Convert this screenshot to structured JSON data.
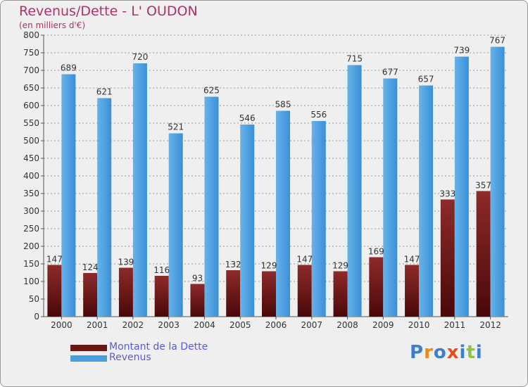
{
  "title": "Revenus/Dette - L' OUDON",
  "subtitle": "(en milliers d'€)",
  "colors": {
    "debt": "#7a1f1f",
    "debt_dark": "#4a0c0c",
    "revenue": "#55a6e2",
    "revenue_dark": "#2c7fc4",
    "grid": "#9a9a9a",
    "axis_text": "#333333",
    "title": "#b0306a",
    "legend_text": "#5a5ad8"
  },
  "legend": [
    {
      "label": "Montant de la Dette",
      "color": "#6b1515"
    },
    {
      "label": "Revenus",
      "color": "#4a9fe0"
    }
  ],
  "logo": {
    "text": "Proxiti",
    "letter_colors": [
      "#3d7fcf",
      "#e88a1d",
      "#3d7fcf",
      "#e84d1d",
      "#3d7fcf",
      "#8ac43f",
      "#3d7fcf"
    ]
  },
  "chart_data": {
    "type": "bar",
    "categories": [
      "2000",
      "2001",
      "2002",
      "2003",
      "2004",
      "2005",
      "2006",
      "2007",
      "2008",
      "2009",
      "2010",
      "2011",
      "2012"
    ],
    "series": [
      {
        "name": "Montant de la Dette",
        "values": [
          147,
          124,
          139,
          116,
          93,
          132,
          129,
          147,
          129,
          169,
          147,
          333,
          357
        ]
      },
      {
        "name": "Revenus",
        "values": [
          689,
          621,
          720,
          521,
          625,
          546,
          585,
          556,
          715,
          677,
          657,
          739,
          767
        ]
      }
    ],
    "ylim": [
      0,
      800
    ],
    "yticks": [
      0,
      50,
      100,
      150,
      200,
      250,
      300,
      350,
      400,
      450,
      500,
      550,
      600,
      650,
      700,
      750,
      800
    ],
    "grid": true,
    "legend_position": "bottom-left"
  }
}
